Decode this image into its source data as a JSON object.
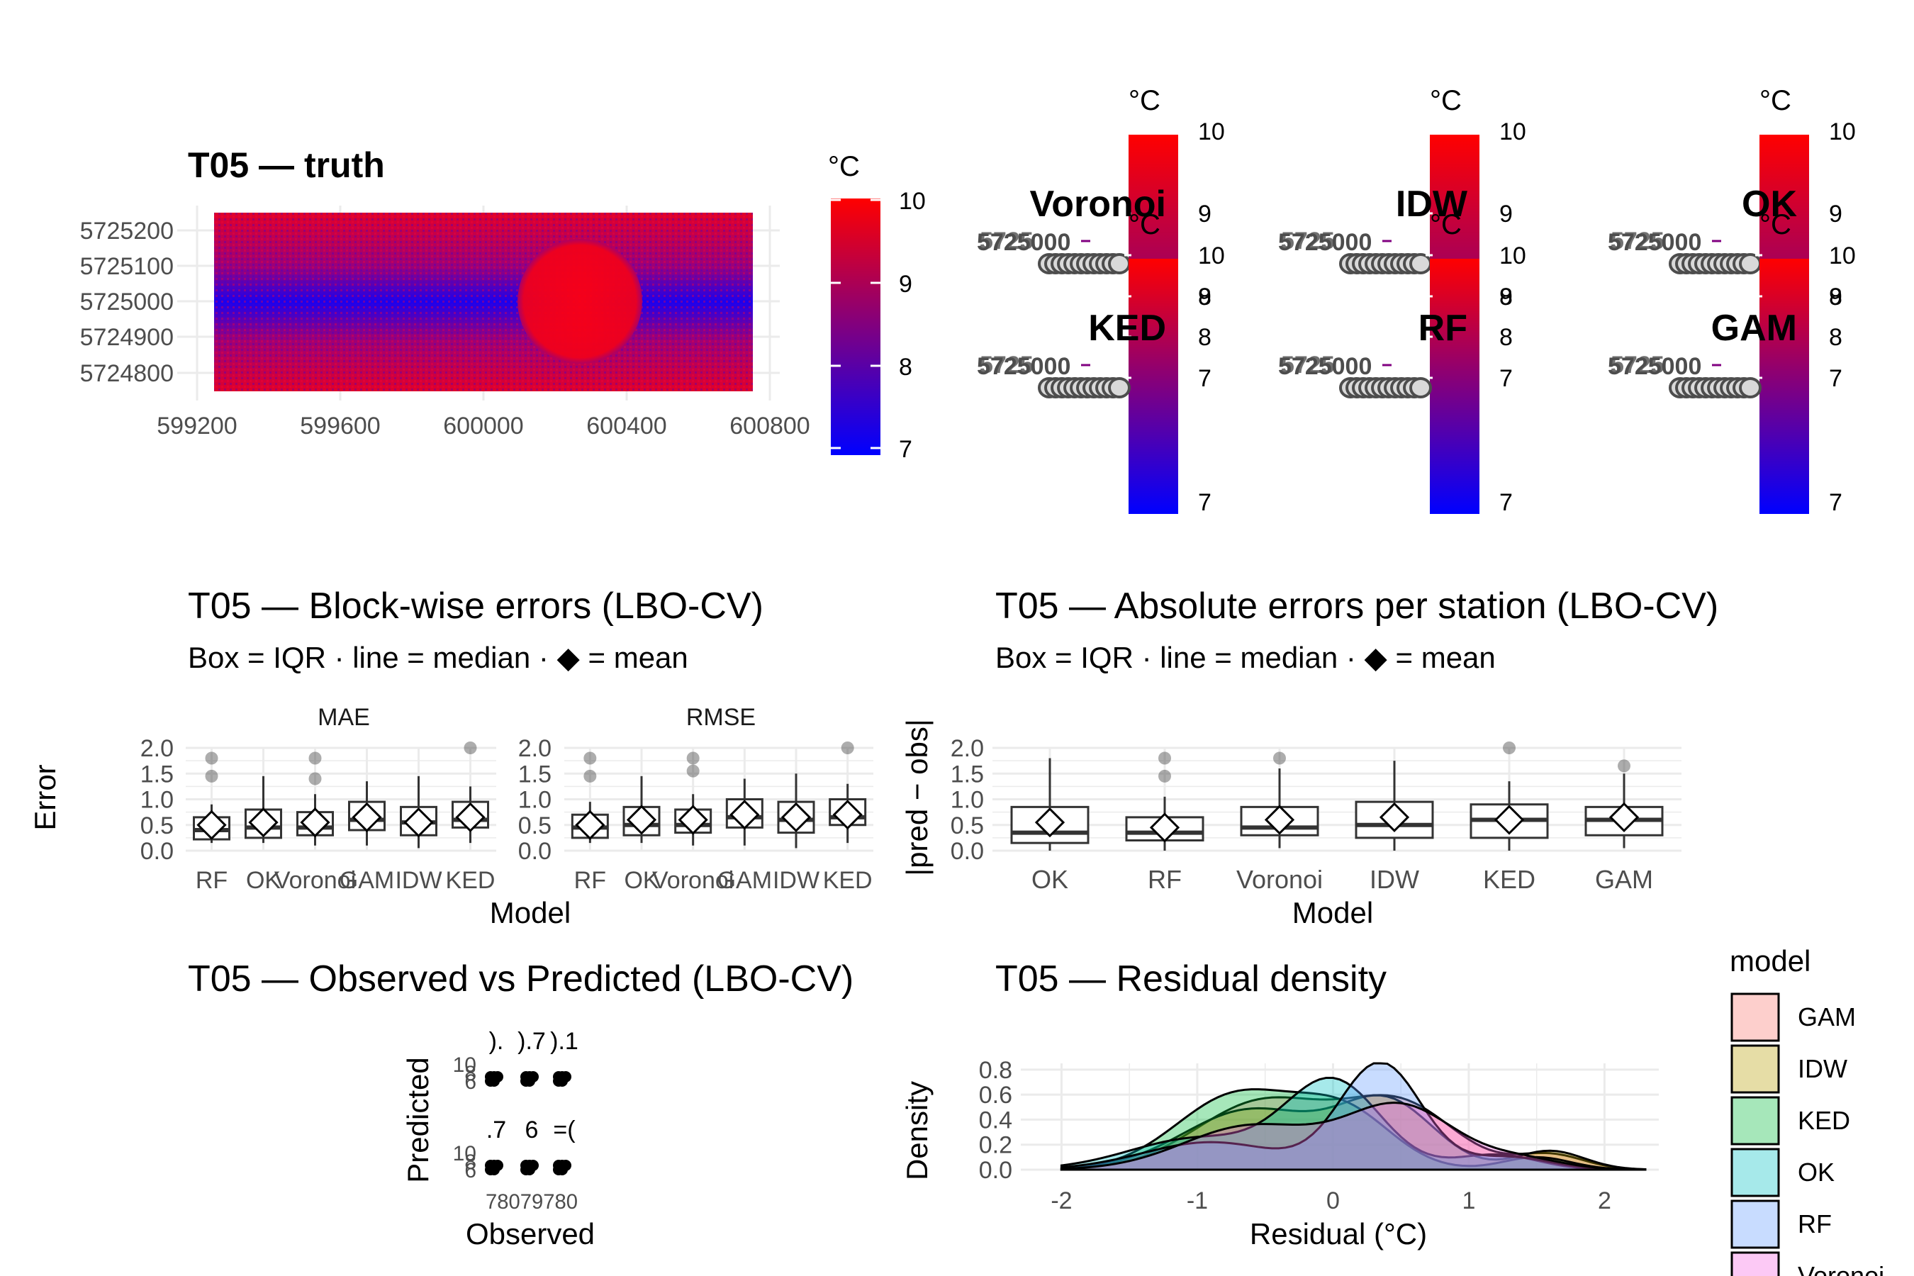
{
  "truth_map": {
    "title": "T05 — truth",
    "x_ticks": [
      "599200",
      "599600",
      "600000",
      "600400",
      "600800"
    ],
    "y_ticks": [
      "5725200",
      "5725100",
      "5725000",
      "5724900",
      "5724800"
    ],
    "legend": {
      "title": "°C",
      "ticks": [
        "10",
        "9",
        "8",
        "7"
      ],
      "low_color": "#0000ff",
      "high_color": "#ff0000"
    }
  },
  "model_maps": [
    {
      "title": "Voronoi",
      "legend_title": "°C",
      "ticks": [
        "10",
        "9",
        "8",
        "7"
      ]
    },
    {
      "title": "IDW",
      "legend_title": "°C",
      "ticks": [
        "10",
        "9",
        "8",
        "7"
      ]
    },
    {
      "title": "OK",
      "legend_title": "°C",
      "ticks": [
        "10",
        "9",
        "8",
        "7"
      ]
    },
    {
      "title": "KED",
      "legend_title": "°C",
      "ticks": [
        "10",
        "9",
        "8",
        "7"
      ]
    },
    {
      "title": "RF",
      "legend_title": "°C",
      "ticks": [
        "10",
        "9",
        "8",
        "7"
      ]
    },
    {
      "title": "GAM",
      "legend_title": "°C",
      "ticks": [
        "10",
        "9",
        "8",
        "7"
      ]
    }
  ],
  "model_map_axis_label": "5725000",
  "block_errors": {
    "title": "T05 — Block-wise errors (LBO-CV)",
    "subtitle": "Box = IQR · line = median · ◆ = mean",
    "xlabel": "Model",
    "ylabel": "Error",
    "y_ticks": [
      "2.0",
      "1.5",
      "1.0",
      "0.5",
      "0.0"
    ]
  },
  "abs_errors": {
    "title": "T05 — Absolute errors per station (LBO-CV)",
    "subtitle": "Box = IQR · line = median · ◆ = mean",
    "xlabel": "Model",
    "ylabel": "|pred − obs|",
    "y_ticks": [
      "2.0",
      "1.5",
      "1.0",
      "0.5",
      "0.0"
    ]
  },
  "obs_pred": {
    "title": "T05 — Observed vs Predicted (LBO-CV)",
    "xlabel": "Observed",
    "ylabel": "Predicted",
    "panel_labels": [
      ").",
      ").7",
      ").1",
      ".7",
      "6",
      "=("
    ],
    "y_ticks": [
      "10",
      "8",
      "6"
    ],
    "x_ticks": "78079780"
  },
  "density": {
    "title": "T05 — Residual density",
    "xlabel": "Residual (°C)",
    "ylabel": "Density",
    "x_ticks": [
      "-2",
      "-1",
      "0",
      "1",
      "2"
    ],
    "y_ticks": [
      "0.8",
      "0.6",
      "0.4",
      "0.2",
      "0.0"
    ],
    "legend_title": "model"
  },
  "chart_data": [
    {
      "type": "heatmap",
      "title": "T05 — truth",
      "legend_title": "°C",
      "color_range": [
        7,
        10
      ],
      "xlim": [
        599200,
        600800
      ],
      "ylim": [
        5724750,
        5725250
      ]
    },
    {
      "type": "box",
      "title": "T05 — Block-wise errors (LBO-CV)",
      "xlabel": "Model",
      "ylabel": "Error",
      "ylim": [
        0,
        2.0
      ],
      "facets": [
        {
          "name": "MAE",
          "categories": [
            "RF",
            "OK",
            "Voronoi",
            "GAM",
            "IDW",
            "KED"
          ],
          "boxes": [
            {
              "q1": 0.22,
              "median": 0.4,
              "q3": 0.65,
              "lower": 0.15,
              "upper": 0.9,
              "mean": 0.5,
              "outliers": [
                1.45,
                1.8
              ]
            },
            {
              "q1": 0.25,
              "median": 0.45,
              "q3": 0.8,
              "lower": 0.15,
              "upper": 1.45,
              "mean": 0.55,
              "outliers": []
            },
            {
              "q1": 0.3,
              "median": 0.45,
              "q3": 0.75,
              "lower": 0.1,
              "upper": 1.1,
              "mean": 0.55,
              "outliers": [
                1.4,
                1.8
              ]
            },
            {
              "q1": 0.4,
              "median": 0.6,
              "q3": 0.95,
              "lower": 0.1,
              "upper": 1.35,
              "mean": 0.65,
              "outliers": []
            },
            {
              "q1": 0.3,
              "median": 0.55,
              "q3": 0.85,
              "lower": 0.05,
              "upper": 1.45,
              "mean": 0.55,
              "outliers": []
            },
            {
              "q1": 0.45,
              "median": 0.6,
              "q3": 0.95,
              "lower": 0.15,
              "upper": 1.25,
              "mean": 0.65,
              "outliers": [
                2.0
              ]
            }
          ]
        },
        {
          "name": "RMSE",
          "categories": [
            "RF",
            "OK",
            "Voronoi",
            "GAM",
            "IDW",
            "KED"
          ],
          "boxes": [
            {
              "q1": 0.25,
              "median": 0.45,
              "q3": 0.7,
              "lower": 0.15,
              "upper": 0.95,
              "mean": 0.5,
              "outliers": [
                1.45,
                1.8
              ]
            },
            {
              "q1": 0.3,
              "median": 0.5,
              "q3": 0.85,
              "lower": 0.15,
              "upper": 1.45,
              "mean": 0.6,
              "outliers": []
            },
            {
              "q1": 0.35,
              "median": 0.5,
              "q3": 0.8,
              "lower": 0.1,
              "upper": 1.1,
              "mean": 0.6,
              "outliers": [
                1.55,
                1.8
              ]
            },
            {
              "q1": 0.45,
              "median": 0.65,
              "q3": 1.0,
              "lower": 0.1,
              "upper": 1.4,
              "mean": 0.7,
              "outliers": []
            },
            {
              "q1": 0.35,
              "median": 0.6,
              "q3": 0.95,
              "lower": 0.05,
              "upper": 1.5,
              "mean": 0.65,
              "outliers": []
            },
            {
              "q1": 0.5,
              "median": 0.65,
              "q3": 1.0,
              "lower": 0.15,
              "upper": 1.3,
              "mean": 0.7,
              "outliers": [
                2.0
              ]
            }
          ]
        }
      ]
    },
    {
      "type": "box",
      "title": "T05 — Absolute errors per station (LBO-CV)",
      "xlabel": "Model",
      "ylabel": "|pred − obs|",
      "ylim": [
        0,
        2.0
      ],
      "categories": [
        "OK",
        "RF",
        "Voronoi",
        "IDW",
        "KED",
        "GAM"
      ],
      "boxes": [
        {
          "q1": 0.15,
          "median": 0.35,
          "q3": 0.85,
          "lower": 0.0,
          "upper": 1.8,
          "mean": 0.55,
          "outliers": []
        },
        {
          "q1": 0.2,
          "median": 0.35,
          "q3": 0.65,
          "lower": 0.0,
          "upper": 1.05,
          "mean": 0.45,
          "outliers": [
            1.45,
            1.8
          ]
        },
        {
          "q1": 0.3,
          "median": 0.45,
          "q3": 0.85,
          "lower": 0.05,
          "upper": 1.6,
          "mean": 0.6,
          "outliers": [
            1.8
          ]
        },
        {
          "q1": 0.25,
          "median": 0.5,
          "q3": 0.95,
          "lower": 0.0,
          "upper": 1.75,
          "mean": 0.65,
          "outliers": []
        },
        {
          "q1": 0.25,
          "median": 0.6,
          "q3": 0.9,
          "lower": 0.0,
          "upper": 1.35,
          "mean": 0.6,
          "outliers": [
            2.0
          ]
        },
        {
          "q1": 0.3,
          "median": 0.6,
          "q3": 0.85,
          "lower": 0.05,
          "upper": 1.5,
          "mean": 0.65,
          "outliers": [
            1.65
          ]
        }
      ]
    },
    {
      "type": "area",
      "title": "T05 — Residual density",
      "xlabel": "Residual (°C)",
      "ylabel": "Density",
      "xlim": [
        -2.3,
        2.4
      ],
      "ylim": [
        0,
        0.85
      ],
      "legend_title": "model",
      "series": [
        {
          "name": "GAM",
          "color": "#f8766d",
          "peaks": [
            [
              -0.5,
              0.55,
              0.5
            ],
            [
              0.5,
              0.5,
              0.4
            ],
            [
              1.6,
              0.12,
              0.25
            ]
          ]
        },
        {
          "name": "IDW",
          "color": "#b79f00",
          "peaks": [
            [
              -0.6,
              0.48,
              0.5
            ],
            [
              0.4,
              0.52,
              0.35
            ],
            [
              1.6,
              0.15,
              0.25
            ]
          ]
        },
        {
          "name": "KED",
          "color": "#00ba38",
          "peaks": [
            [
              -0.7,
              0.6,
              0.45
            ],
            [
              0.1,
              0.42,
              0.35
            ],
            [
              1.5,
              0.1,
              0.25
            ]
          ]
        },
        {
          "name": "OK",
          "color": "#00bfc4",
          "peaks": [
            [
              0.0,
              0.7,
              0.35
            ],
            [
              -1.0,
              0.25,
              0.5
            ],
            [
              1.2,
              0.12,
              0.3
            ]
          ]
        },
        {
          "name": "RF",
          "color": "#619cff",
          "peaks": [
            [
              0.35,
              0.85,
              0.3
            ],
            [
              -0.9,
              0.22,
              0.5
            ],
            [
              1.3,
              0.1,
              0.3
            ]
          ]
        },
        {
          "name": "Voronoi",
          "color": "#f564e3",
          "peaks": [
            [
              0.5,
              0.5,
              0.4
            ],
            [
              -0.6,
              0.35,
              0.5
            ],
            [
              1.4,
              0.08,
              0.3
            ]
          ]
        }
      ]
    }
  ]
}
